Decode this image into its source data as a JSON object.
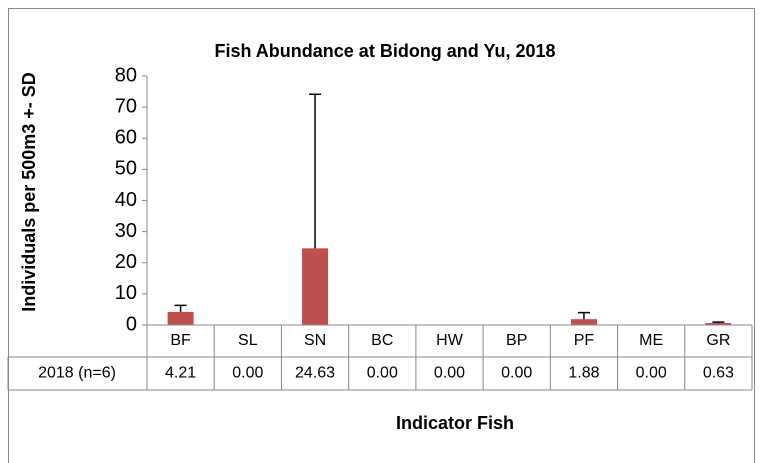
{
  "chart_data": {
    "type": "bar",
    "title": "Fish Abundance at Bidong and Yu, 2018",
    "x_label": "Indicator Fish",
    "y_label": "Individuals per  500m3 +- SD",
    "categories": [
      "BF",
      "SL",
      "SN",
      "BC",
      "HW",
      "BP",
      "PF",
      "ME",
      "GR"
    ],
    "series": [
      {
        "name": "2018 (n=6)",
        "color": "#c0504d",
        "values": [
          4.21,
          0,
          24.63,
          0,
          0,
          0,
          1.88,
          0,
          0.63
        ],
        "value_labels": [
          "4.21",
          "0.00",
          "24.63",
          "0.00",
          "0.00",
          "0.00",
          "1.88",
          "0.00",
          "0.63"
        ],
        "errors": [
          2.1,
          0,
          49.5,
          0,
          0,
          0,
          2.1,
          0,
          0.3
        ]
      }
    ],
    "ylim": [
      0,
      80
    ],
    "yticks": [
      0,
      10,
      20,
      30,
      40,
      50,
      60,
      70,
      80
    ],
    "grid": false
  }
}
